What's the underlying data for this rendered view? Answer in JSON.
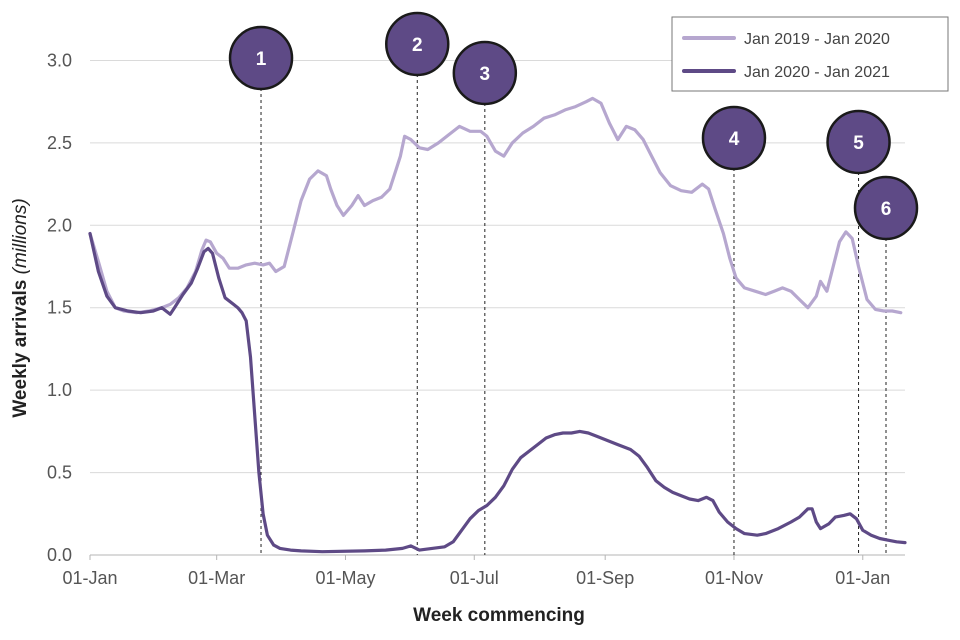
{
  "chart_data": {
    "type": "line",
    "xlabel": "Week commencing",
    "ylabel": "Weekly arrivals",
    "ylabel_unit": "(millions)",
    "ylim": [
      0,
      3.3
    ],
    "yticks": [
      {
        "value": 0,
        "label": "0.0"
      },
      {
        "value": 0.5,
        "label": "0.5"
      },
      {
        "value": 1,
        "label": "1.0"
      },
      {
        "value": 1.5,
        "label": "1.5"
      },
      {
        "value": 2,
        "label": "2.0"
      },
      {
        "value": 2.5,
        "label": "2.5"
      },
      {
        "value": 3,
        "label": "3.0"
      }
    ],
    "xlim": [
      0,
      386
    ],
    "xticks": [
      {
        "value": 0,
        "label": "01-Jan"
      },
      {
        "value": 60,
        "label": "01-Mar"
      },
      {
        "value": 121,
        "label": "01-May"
      },
      {
        "value": 182,
        "label": "01-Jul"
      },
      {
        "value": 244,
        "label": "01-Sep"
      },
      {
        "value": 305,
        "label": "01-Nov"
      },
      {
        "value": 366,
        "label": "01-Jan"
      }
    ],
    "grid": true,
    "legend_position": "top-right",
    "series": [
      {
        "name": "Jan 2019 - Jan 2020",
        "color": "#b6a7cf",
        "points": [
          [
            0,
            1.95
          ],
          [
            4,
            1.78
          ],
          [
            8,
            1.6
          ],
          [
            12,
            1.5
          ],
          [
            16,
            1.48
          ],
          [
            22,
            1.47
          ],
          [
            28,
            1.48
          ],
          [
            34,
            1.5
          ],
          [
            38,
            1.52
          ],
          [
            42,
            1.56
          ],
          [
            46,
            1.62
          ],
          [
            50,
            1.72
          ],
          [
            53,
            1.85
          ],
          [
            55,
            1.91
          ],
          [
            57,
            1.9
          ],
          [
            60,
            1.83
          ],
          [
            63,
            1.8
          ],
          [
            66,
            1.74
          ],
          [
            70,
            1.74
          ],
          [
            74,
            1.76
          ],
          [
            78,
            1.77
          ],
          [
            82,
            1.76
          ],
          [
            85,
            1.77
          ],
          [
            88,
            1.72
          ],
          [
            92,
            1.75
          ],
          [
            96,
            1.95
          ],
          [
            100,
            2.15
          ],
          [
            104,
            2.28
          ],
          [
            108,
            2.33
          ],
          [
            112,
            2.3
          ],
          [
            114,
            2.22
          ],
          [
            117,
            2.12
          ],
          [
            120,
            2.06
          ],
          [
            124,
            2.12
          ],
          [
            127,
            2.18
          ],
          [
            130,
            2.12
          ],
          [
            134,
            2.15
          ],
          [
            138,
            2.17
          ],
          [
            142,
            2.22
          ],
          [
            145,
            2.34
          ],
          [
            147,
            2.42
          ],
          [
            149,
            2.54
          ],
          [
            152,
            2.52
          ],
          [
            156,
            2.47
          ],
          [
            160,
            2.46
          ],
          [
            165,
            2.5
          ],
          [
            170,
            2.55
          ],
          [
            175,
            2.6
          ],
          [
            180,
            2.57
          ],
          [
            185,
            2.57
          ],
          [
            188,
            2.54
          ],
          [
            192,
            2.45
          ],
          [
            196,
            2.42
          ],
          [
            200,
            2.5
          ],
          [
            205,
            2.56
          ],
          [
            210,
            2.6
          ],
          [
            215,
            2.65
          ],
          [
            220,
            2.67
          ],
          [
            225,
            2.7
          ],
          [
            230,
            2.72
          ],
          [
            235,
            2.75
          ],
          [
            238,
            2.77
          ],
          [
            242,
            2.74
          ],
          [
            246,
            2.62
          ],
          [
            250,
            2.52
          ],
          [
            254,
            2.6
          ],
          [
            258,
            2.58
          ],
          [
            262,
            2.52
          ],
          [
            266,
            2.42
          ],
          [
            270,
            2.32
          ],
          [
            275,
            2.24
          ],
          [
            280,
            2.21
          ],
          [
            285,
            2.2
          ],
          [
            290,
            2.25
          ],
          [
            293,
            2.22
          ],
          [
            296,
            2.1
          ],
          [
            300,
            1.95
          ],
          [
            303,
            1.8
          ],
          [
            306,
            1.68
          ],
          [
            310,
            1.62
          ],
          [
            315,
            1.6
          ],
          [
            320,
            1.58
          ],
          [
            324,
            1.6
          ],
          [
            328,
            1.62
          ],
          [
            332,
            1.6
          ],
          [
            336,
            1.55
          ],
          [
            340,
            1.5
          ],
          [
            344,
            1.57
          ],
          [
            346,
            1.66
          ],
          [
            349,
            1.6
          ],
          [
            352,
            1.75
          ],
          [
            355,
            1.9
          ],
          [
            358,
            1.96
          ],
          [
            361,
            1.92
          ],
          [
            364,
            1.75
          ],
          [
            368,
            1.55
          ],
          [
            372,
            1.49
          ],
          [
            376,
            1.48
          ],
          [
            380,
            1.48
          ],
          [
            384,
            1.47
          ]
        ]
      },
      {
        "name": "Jan 2020 - Jan 2021",
        "color": "#5e4a86",
        "points": [
          [
            0,
            1.95
          ],
          [
            4,
            1.72
          ],
          [
            8,
            1.57
          ],
          [
            12,
            1.5
          ],
          [
            18,
            1.48
          ],
          [
            24,
            1.47
          ],
          [
            30,
            1.48
          ],
          [
            34,
            1.5
          ],
          [
            38,
            1.46
          ],
          [
            40,
            1.5
          ],
          [
            44,
            1.58
          ],
          [
            48,
            1.65
          ],
          [
            51,
            1.74
          ],
          [
            54,
            1.84
          ],
          [
            56,
            1.86
          ],
          [
            58,
            1.83
          ],
          [
            61,
            1.68
          ],
          [
            64,
            1.56
          ],
          [
            68,
            1.52
          ],
          [
            70,
            1.5
          ],
          [
            72,
            1.47
          ],
          [
            74,
            1.42
          ],
          [
            76,
            1.2
          ],
          [
            78,
            0.85
          ],
          [
            80,
            0.5
          ],
          [
            82,
            0.25
          ],
          [
            84,
            0.12
          ],
          [
            87,
            0.06
          ],
          [
            90,
            0.04
          ],
          [
            95,
            0.03
          ],
          [
            100,
            0.025
          ],
          [
            110,
            0.02
          ],
          [
            130,
            0.025
          ],
          [
            140,
            0.03
          ],
          [
            148,
            0.04
          ],
          [
            152,
            0.055
          ],
          [
            156,
            0.03
          ],
          [
            162,
            0.04
          ],
          [
            168,
            0.05
          ],
          [
            172,
            0.08
          ],
          [
            176,
            0.15
          ],
          [
            180,
            0.22
          ],
          [
            184,
            0.27
          ],
          [
            188,
            0.3
          ],
          [
            192,
            0.35
          ],
          [
            196,
            0.42
          ],
          [
            200,
            0.52
          ],
          [
            204,
            0.59
          ],
          [
            208,
            0.63
          ],
          [
            212,
            0.67
          ],
          [
            216,
            0.71
          ],
          [
            220,
            0.73
          ],
          [
            224,
            0.74
          ],
          [
            228,
            0.74
          ],
          [
            232,
            0.75
          ],
          [
            236,
            0.74
          ],
          [
            240,
            0.72
          ],
          [
            244,
            0.7
          ],
          [
            250,
            0.67
          ],
          [
            256,
            0.64
          ],
          [
            260,
            0.6
          ],
          [
            264,
            0.53
          ],
          [
            268,
            0.45
          ],
          [
            272,
            0.41
          ],
          [
            276,
            0.38
          ],
          [
            280,
            0.36
          ],
          [
            284,
            0.34
          ],
          [
            288,
            0.33
          ],
          [
            292,
            0.35
          ],
          [
            295,
            0.33
          ],
          [
            298,
            0.26
          ],
          [
            302,
            0.2
          ],
          [
            306,
            0.16
          ],
          [
            310,
            0.13
          ],
          [
            316,
            0.12
          ],
          [
            320,
            0.13
          ],
          [
            326,
            0.16
          ],
          [
            332,
            0.2
          ],
          [
            336,
            0.23
          ],
          [
            340,
            0.28
          ],
          [
            342,
            0.28
          ],
          [
            344,
            0.2
          ],
          [
            346,
            0.16
          ],
          [
            350,
            0.19
          ],
          [
            353,
            0.23
          ],
          [
            357,
            0.24
          ],
          [
            360,
            0.25
          ],
          [
            363,
            0.22
          ],
          [
            366,
            0.15
          ],
          [
            370,
            0.12
          ],
          [
            374,
            0.1
          ],
          [
            378,
            0.09
          ],
          [
            382,
            0.08
          ],
          [
            386,
            0.075
          ]
        ]
      }
    ],
    "annotations": [
      {
        "label": "1",
        "x": 81
      },
      {
        "label": "2",
        "x": 155
      },
      {
        "label": "3",
        "x": 187
      },
      {
        "label": "4",
        "x": 305
      },
      {
        "label": "5",
        "x": 364
      },
      {
        "label": "6",
        "x": 377
      }
    ]
  }
}
